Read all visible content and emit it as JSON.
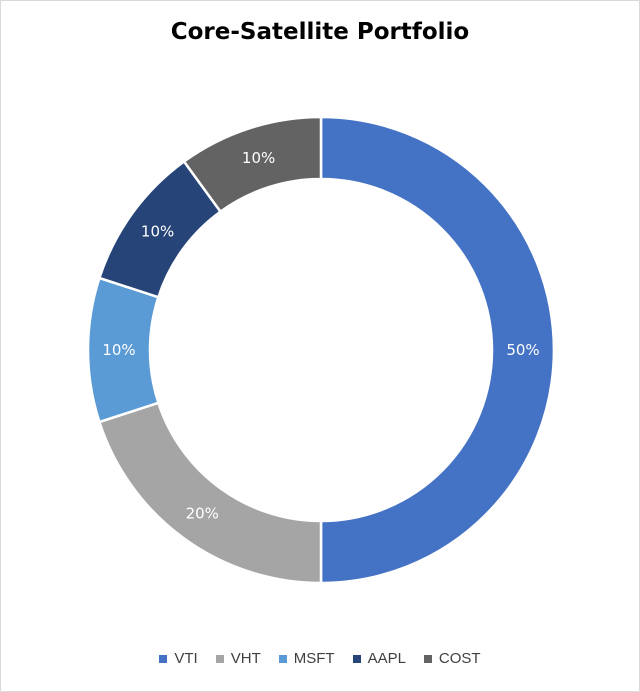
{
  "chart_data": {
    "type": "pie",
    "variant": "doughnut",
    "title": "Core-Satellite Portfolio",
    "categories": [
      "VTI",
      "VHT",
      "MSFT",
      "AAPL",
      "COST"
    ],
    "values": [
      50,
      20,
      10,
      10,
      10
    ],
    "data_labels": [
      "50%",
      "20%",
      "10%",
      "10%",
      "10%"
    ],
    "colors": [
      "#4472c4",
      "#a5a5a5",
      "#5b9bd5",
      "#264478",
      "#636363"
    ],
    "legend_position": "bottom"
  }
}
